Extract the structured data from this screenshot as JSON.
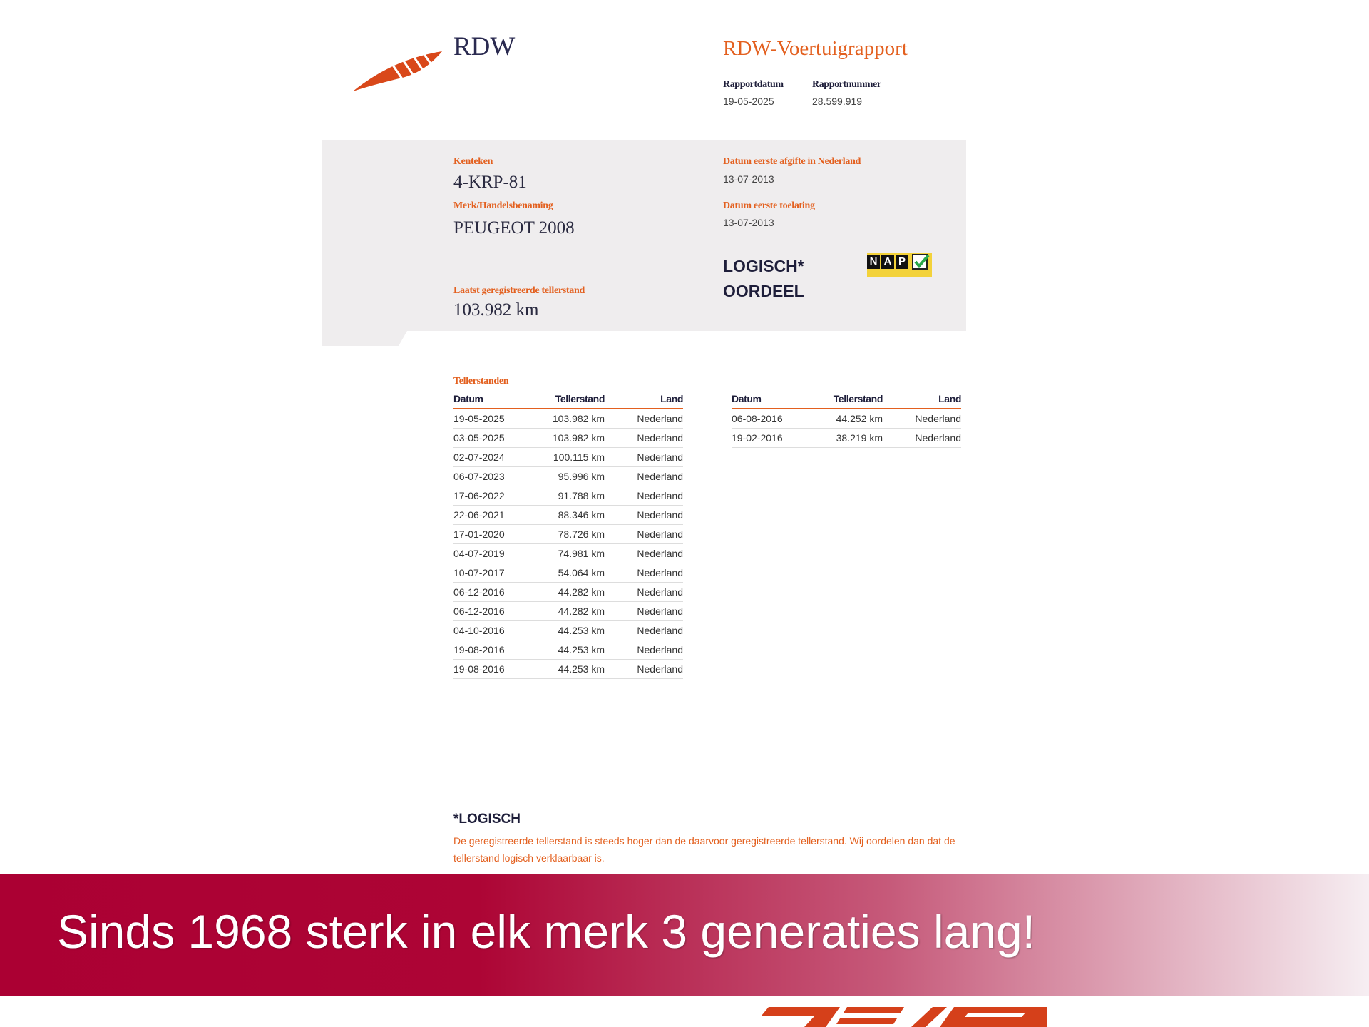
{
  "header": {
    "logo_text": "RDW",
    "title": "RDW-Voertuigrapport",
    "meta": [
      {
        "label": "Rapportdatum",
        "value": "19-05-2025"
      },
      {
        "label": "Rapportnummer",
        "value": "28.599.919"
      }
    ]
  },
  "vehicle": {
    "kenteken_label": "Kenteken",
    "kenteken": "4-KRP-81",
    "merk_label": "Merk/Handelsbenaming",
    "merk": "PEUGEOT 2008",
    "afgifte_label": "Datum eerste afgifte in Nederland",
    "afgifte": "13-07-2013",
    "toelating_label": "Datum eerste toelating",
    "toelating": "13-07-2013",
    "oordeel_value": "LOGISCH*",
    "oordeel_label": "OORDEEL",
    "nap_letters": [
      "N",
      "A",
      "P"
    ],
    "teller_label": "Laatst geregistreerde tellerstand",
    "teller": "103.982 km"
  },
  "tellerstanden": {
    "title": "Tellerstanden",
    "tables": [
      {
        "headers": [
          "Datum",
          "Tellerstand",
          "Land"
        ],
        "rows": [
          [
            "19-05-2025",
            "103.982 km",
            "Nederland"
          ],
          [
            "03-05-2025",
            "103.982 km",
            "Nederland"
          ],
          [
            "02-07-2024",
            "100.115 km",
            "Nederland"
          ],
          [
            "06-07-2023",
            "95.996 km",
            "Nederland"
          ],
          [
            "17-06-2022",
            "91.788 km",
            "Nederland"
          ],
          [
            "22-06-2021",
            "88.346 km",
            "Nederland"
          ],
          [
            "17-01-2020",
            "78.726 km",
            "Nederland"
          ],
          [
            "04-07-2019",
            "74.981 km",
            "Nederland"
          ],
          [
            "10-07-2017",
            "54.064 km",
            "Nederland"
          ],
          [
            "06-12-2016",
            "44.282 km",
            "Nederland"
          ],
          [
            "06-12-2016",
            "44.282 km",
            "Nederland"
          ],
          [
            "04-10-2016",
            "44.253 km",
            "Nederland"
          ],
          [
            "19-08-2016",
            "44.253 km",
            "Nederland"
          ],
          [
            "19-08-2016",
            "44.253 km",
            "Nederland"
          ]
        ]
      },
      {
        "headers": [
          "Datum",
          "Tellerstand",
          "Land"
        ],
        "rows": [
          [
            "06-08-2016",
            "44.252 km",
            "Nederland"
          ],
          [
            "19-02-2016",
            "38.219 km",
            "Nederland"
          ]
        ]
      }
    ]
  },
  "footnote": {
    "title": "*LOGISCH",
    "text": "De geregistreerde tellerstand is steeds hoger dan de daarvoor geregistreerde tellerstand. Wij oordelen dan dat de tellerstand logisch verklaarbaar is."
  },
  "banner": {
    "text": "Sinds 1968 sterk in elk merk 3 generaties lang!"
  }
}
